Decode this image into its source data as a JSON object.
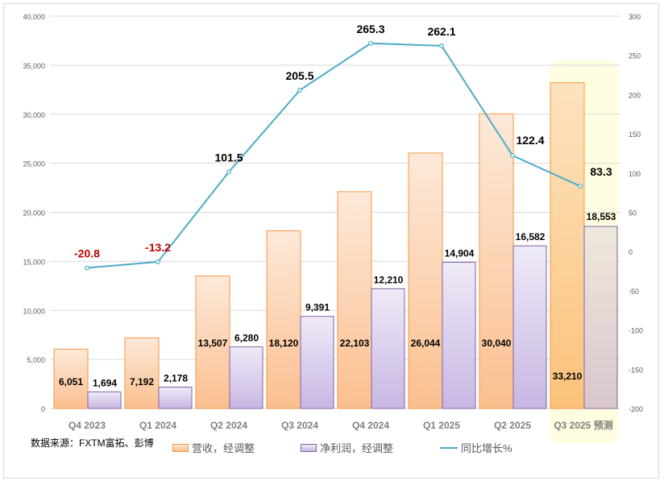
{
  "chart_data": {
    "type": "bar+line",
    "categories": [
      "Q4 2023",
      "Q1 2024",
      "Q2 2024",
      "Q3 2024",
      "Q4 2024",
      "Q1 2025",
      "Q2 2025",
      "Q3 2025 预测"
    ],
    "series": [
      {
        "name": "营收，经调整",
        "type": "bar",
        "axis": "left",
        "values": [
          6051,
          7192,
          13507,
          18120,
          22103,
          26044,
          30040,
          33210
        ],
        "labels": [
          "6,051",
          "7,192",
          "13,507",
          "18,120",
          "22,103",
          "26,044",
          "30,040",
          "33,210"
        ]
      },
      {
        "name": "净利润，经调整",
        "type": "bar",
        "axis": "left",
        "values": [
          1694,
          2178,
          6280,
          9391,
          12210,
          14904,
          16582,
          18553
        ],
        "labels": [
          "1,694",
          "2,178",
          "6,280",
          "9,391",
          "12,210",
          "14,904",
          "16,582",
          "18,553"
        ]
      },
      {
        "name": "同比增长%",
        "type": "line",
        "axis": "right",
        "values": [
          -20.8,
          -13.2,
          101.5,
          205.5,
          265.3,
          262.1,
          122.4,
          83.3
        ],
        "labels": [
          "-20.8",
          "-13.2",
          "101.5",
          "205.5",
          "265.3",
          "262.1",
          "122.4",
          "83.3"
        ]
      }
    ],
    "ylim_left": [
      0,
      40000
    ],
    "yticks_left": [
      "0",
      "5,000",
      "10,000",
      "15,000",
      "20,000",
      "25,000",
      "30,000",
      "35,000",
      "40,000"
    ],
    "ylim_right": [
      -200,
      300
    ],
    "yticks_right": [
      "-200",
      "-150",
      "-100",
      "-50",
      "0",
      "50",
      "100",
      "150",
      "200",
      "250",
      "300"
    ],
    "grid": true,
    "legend_placement": "bottom",
    "highlighted_category": "Q3 2025 预测",
    "colors": {
      "revenue": "#f79646",
      "profit": "#8064a2",
      "line": "#4bacc6",
      "negative_label": "#c00000",
      "highlight": "#fffde0"
    }
  },
  "source": "数据来源：FXTM富拓、彭博"
}
